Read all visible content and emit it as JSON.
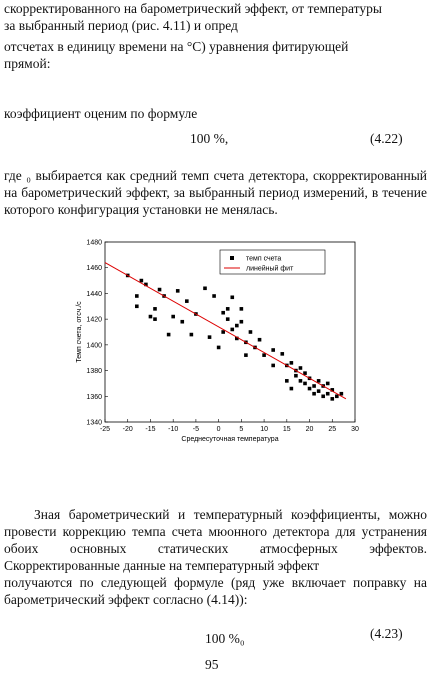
{
  "document": {
    "lines": [
      "скорректированного на барометрический эффект, от температуры",
      "за выбранный период (рис. 4.11) и опред",
      "отсчетах в единицу времени на °С) уравнения фитирующей",
      "прямой:"
    ],
    "coef_line": "коэффициент оценим по формуле",
    "formula1": {
      "body": "100 %,",
      "number": "(4.22)"
    },
    "paragraph1": "где   ₀   выбирается как средний темп счета детектора, скорректированный на барометрический эффект, за выбранный период измерений, в течение которого конфигурация установки не менялась.",
    "paragraph2": "Зная барометрический и температурный коэффициенты, можно провести коррекцию темпа счета мюонного детектора для устранения обоих основных статических атмосферных эффектов. Скорректированные данные на температурный эффект",
    "paragraph3": "получаются по следующей формуле (ряд        уже включает поправку на барометрический эффект согласно (4.14)):",
    "formula2": {
      "body": "100 %₀",
      "number": "(4.23)"
    },
    "page_number": "95"
  },
  "chart_data": {
    "type": "scatter",
    "x_label": "Среднесуточная температура",
    "y_label": "Темп счета, отсч./с",
    "xlim": [
      -25,
      30
    ],
    "xticks": [
      -25,
      -20,
      -15,
      -10,
      -5,
      0,
      5,
      10,
      15,
      20,
      25,
      30
    ],
    "ylim": [
      1340,
      1480
    ],
    "yticks": [
      1340,
      1360,
      1380,
      1400,
      1420,
      1440,
      1460,
      1480
    ],
    "legend": "top-right",
    "series": [
      {
        "name": "темп счета",
        "color": "#000000",
        "marker": "square",
        "x": [
          -20,
          -17,
          -16,
          -18,
          -13,
          -12,
          -9,
          -7,
          -3,
          -1,
          3,
          -14,
          -15,
          -14,
          -10,
          -8,
          -11,
          -18,
          -6,
          -2,
          1,
          2,
          2,
          3,
          4,
          5,
          4,
          6,
          8,
          7,
          9,
          10,
          12,
          14,
          15,
          16,
          17,
          17,
          18,
          18,
          19,
          19,
          20,
          20,
          21,
          21,
          22,
          22,
          23,
          23,
          24,
          24,
          25,
          25,
          26,
          27,
          15,
          16,
          12,
          0,
          1,
          -5,
          5,
          6
        ],
        "values": [
          1454,
          1450,
          1447,
          1438,
          1443,
          1438,
          1442,
          1434,
          1444,
          1438,
          1437,
          1428,
          1422,
          1420,
          1422,
          1418,
          1408,
          1430,
          1408,
          1406,
          1425,
          1428,
          1420,
          1412,
          1415,
          1418,
          1405,
          1402,
          1398,
          1410,
          1404,
          1392,
          1396,
          1393,
          1384,
          1386,
          1380,
          1376,
          1382,
          1372,
          1370,
          1378,
          1366,
          1374,
          1368,
          1362,
          1372,
          1364,
          1360,
          1368,
          1362,
          1370,
          1358,
          1365,
          1360,
          1362,
          1372,
          1366,
          1384,
          1398,
          1410,
          1424,
          1428,
          1392
        ]
      },
      {
        "name": "линейный фит",
        "color": "#dd0000",
        "marker": "line",
        "x": [
          -25,
          28
        ],
        "values": [
          1464,
          1358
        ]
      }
    ]
  }
}
